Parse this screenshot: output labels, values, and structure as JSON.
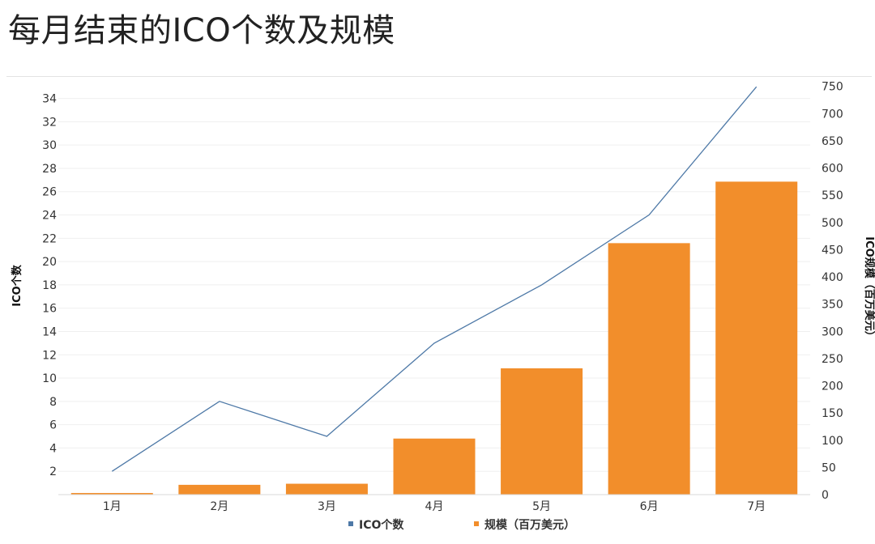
{
  "title": "每月结束的ICO个数及规模",
  "chart_data": {
    "type": "bar+line",
    "categories": [
      "1月",
      "2月",
      "3月",
      "4月",
      "5月",
      "6月",
      "7月"
    ],
    "series": [
      {
        "name": "ICO个数",
        "type": "line",
        "axis": "left",
        "color": "#4e79a7",
        "values": [
          2,
          8,
          5,
          13,
          18,
          24,
          35
        ]
      },
      {
        "name": "规模（百万美元）",
        "type": "bar",
        "axis": "right",
        "color": "#f28e2b",
        "values": [
          3,
          18,
          20,
          103,
          232,
          462,
          575
        ]
      }
    ],
    "y_left": {
      "label": "ICO个数",
      "ticks": [
        2,
        4,
        6,
        8,
        10,
        12,
        14,
        16,
        18,
        20,
        22,
        24,
        26,
        28,
        30,
        32,
        34
      ],
      "range": [
        0,
        35.5
      ]
    },
    "y_right": {
      "label": "ICO规模（百万美元）",
      "ticks": [
        0,
        50,
        100,
        150,
        200,
        250,
        300,
        350,
        400,
        450,
        500,
        550,
        600,
        650,
        700,
        750
      ],
      "range": [
        0,
        760
      ]
    },
    "grid": true,
    "legend": "bottom"
  }
}
